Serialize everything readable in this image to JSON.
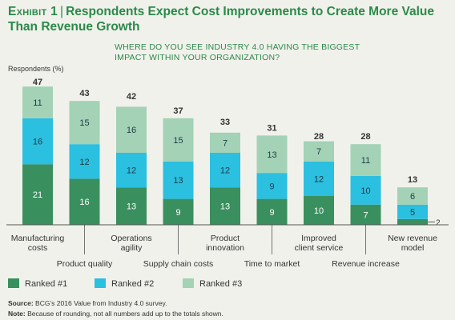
{
  "header": {
    "exhibit_label": "Exhibit 1",
    "separator": "|",
    "title": "Respondents Expect Cost Improvements to Create More Value Than Revenue Growth"
  },
  "chart_data": {
    "type": "bar",
    "stacked": true,
    "title": "WHERE DO YOU SEE INDUSTRY 4.0 HAVING THE BIGGEST IMPACT WITHIN YOUR ORGANIZATION?",
    "ylabel": "Respondents (%)",
    "xlabel": "",
    "categories": [
      "Manufacturing costs",
      "Product quality",
      "Operations agility",
      "Supply chain costs",
      "Product innovation",
      "Time to market",
      "Improved client service",
      "Revenue increase",
      "New revenue model"
    ],
    "series": [
      {
        "name": "Ranked #1",
        "color": "#3a8f5e",
        "values": [
          21,
          16,
          13,
          9,
          13,
          9,
          10,
          7,
          2
        ]
      },
      {
        "name": "Ranked #2",
        "color": "#2bbfe0",
        "values": [
          16,
          12,
          12,
          13,
          12,
          9,
          12,
          10,
          5
        ]
      },
      {
        "name": "Ranked #3",
        "color": "#a3d2b6",
        "values": [
          11,
          15,
          16,
          15,
          7,
          13,
          7,
          11,
          6
        ]
      }
    ],
    "totals": [
      47,
      43,
      42,
      37,
      33,
      31,
      28,
      28,
      13
    ],
    "ylim": [
      0,
      50
    ],
    "grid": false,
    "legend_position": "bottom-left"
  },
  "footer": {
    "source_label": "Source:",
    "source_text": "BCG’s 2016 Value from Industry 4.0 survey.",
    "note_label": "Note:",
    "note_text": "Because of rounding, not all numbers add up to the totals shown."
  }
}
